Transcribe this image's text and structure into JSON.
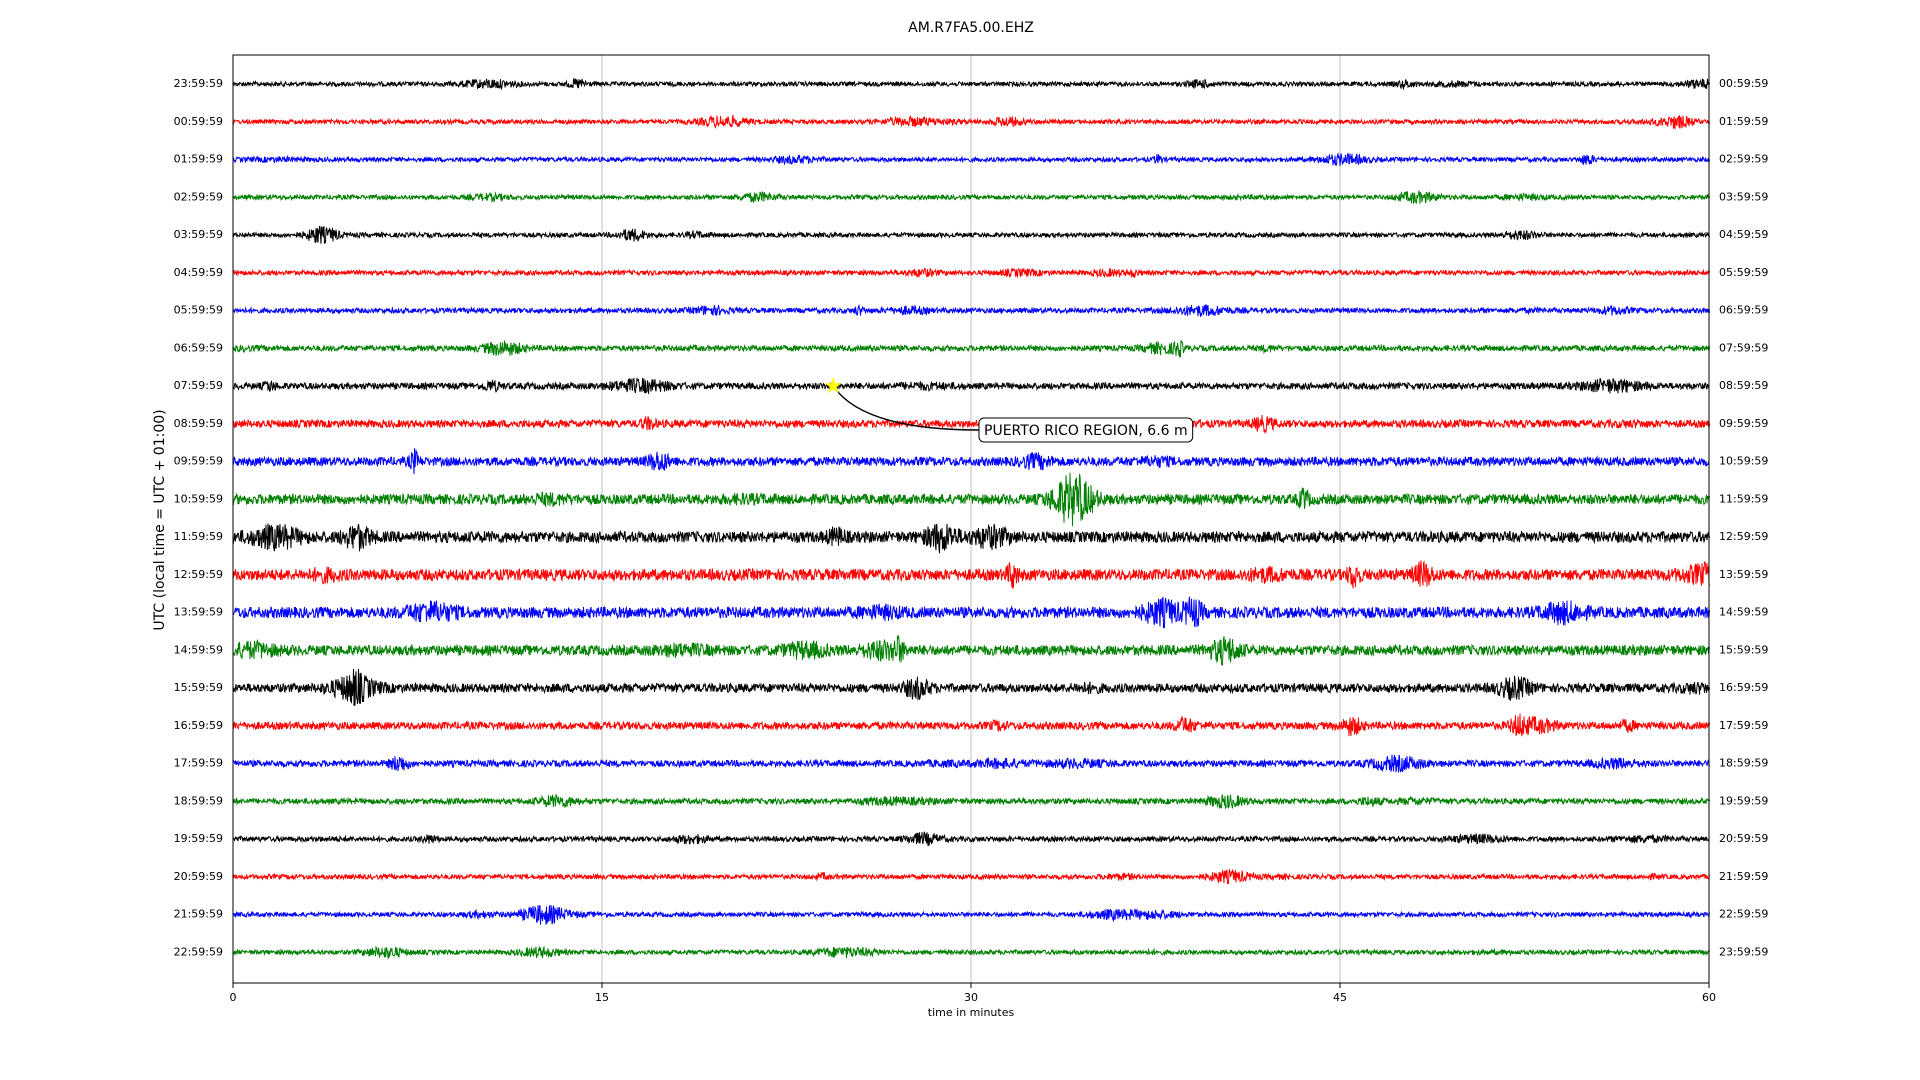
{
  "chart_data": {
    "type": "helicorder",
    "title": "AM.R7FA5.00.EHZ",
    "xlabel": "time in minutes",
    "ylabel": "UTC (local time = UTC + 01:00)",
    "xlim": [
      0,
      60
    ],
    "xticks": [
      0,
      15,
      30,
      45,
      60
    ],
    "grid": true,
    "colors": [
      "#000000",
      "#ff0000",
      "#0000ff",
      "#008000"
    ],
    "rows_left": [
      "23:59:59",
      "00:59:59",
      "01:59:59",
      "02:59:59",
      "03:59:59",
      "04:59:59",
      "05:59:59",
      "06:59:59",
      "07:59:59",
      "08:59:59",
      "09:59:59",
      "10:59:59",
      "11:59:59",
      "12:59:59",
      "13:59:59",
      "14:59:59",
      "15:59:59",
      "16:59:59",
      "17:59:59",
      "18:59:59",
      "19:59:59",
      "20:59:59",
      "21:59:59",
      "22:59:59"
    ],
    "rows_right": [
      "00:59:59",
      "01:59:59",
      "02:59:59",
      "03:59:59",
      "04:59:59",
      "05:59:59",
      "06:59:59",
      "07:59:59",
      "08:59:59",
      "09:59:59",
      "10:59:59",
      "11:59:59",
      "12:59:59",
      "13:59:59",
      "14:59:59",
      "15:59:59",
      "16:59:59",
      "17:59:59",
      "18:59:59",
      "19:59:59",
      "20:59:59",
      "21:59:59",
      "22:59:59",
      "23:59:59"
    ],
    "event": {
      "x": 24.4,
      "row": 8,
      "label": "PUERTO RICO REGION, 6.6 m",
      "marker_color": "#ffff00"
    }
  }
}
